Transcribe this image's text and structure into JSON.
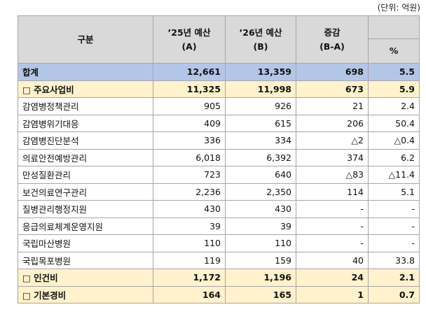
{
  "unit_note": "(단위: 억원)",
  "table": {
    "header": [
      [
        "구분"
      ],
      [
        "’25년 예산",
        "(A)"
      ],
      [
        "’26년 예산",
        "(B)"
      ],
      [
        "증감",
        "(B-A)"
      ],
      [
        "%"
      ]
    ],
    "rows": [
      [
        "합계",
        "12,661",
        "13,359",
        "698",
        "5.5"
      ],
      [
        "□ 주요사업비",
        "11,325",
        "11,998",
        "673",
        "5.9"
      ],
      [
        "감염병정책관리",
        "905",
        "926",
        "21",
        "2.4"
      ],
      [
        "감염병위기대응",
        "409",
        "615",
        "206",
        "50.4"
      ],
      [
        "감염병진단분석",
        "336",
        "334",
        "△2",
        "△0.4"
      ],
      [
        "의료안전예방관리",
        "6,018",
        "6,392",
        "374",
        "6.2"
      ],
      [
        "만성질환관리",
        "723",
        "640",
        "△83",
        "△11.4"
      ],
      [
        "보건의료연구관리",
        "2,236",
        "2,350",
        "114",
        "5.1"
      ],
      [
        "질병관리행정지원",
        "430",
        "430",
        "-",
        "-"
      ],
      [
        "응급의료체계운영지원",
        "39",
        "39",
        "-",
        "-"
      ],
      [
        "국립마산병원",
        "110",
        "110",
        "-",
        "-"
      ],
      [
        "국립목포병원",
        "119",
        "159",
        "40",
        "33.8"
      ],
      [
        "□ 인건비",
        "1,172",
        "1,196",
        "24",
        "2.1"
      ],
      [
        "□ 기본경비",
        "164",
        "165",
        "1",
        "0.7"
      ]
    ]
  }
}
